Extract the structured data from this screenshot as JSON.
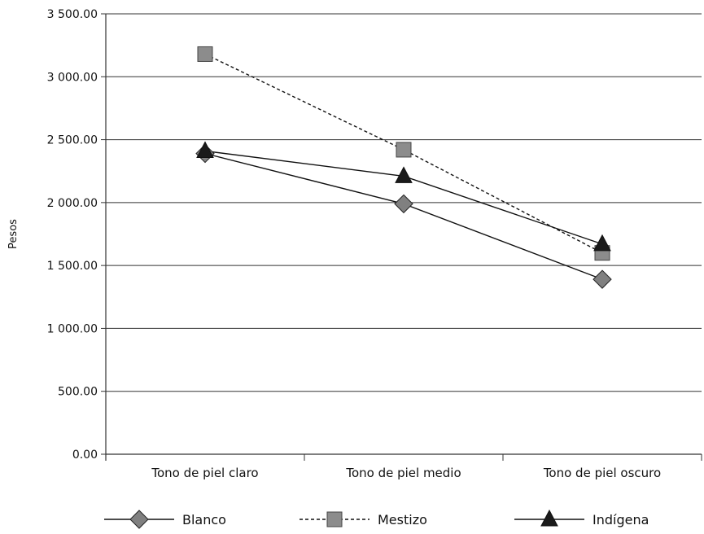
{
  "chart_data": {
    "type": "line",
    "title": "",
    "xlabel": "",
    "ylabel": "Pesos",
    "categories": [
      "Tono de piel claro",
      "Tono de piel medio",
      "Tono de piel oscuro"
    ],
    "ylim": [
      0,
      3500
    ],
    "yticks": [
      "0.00",
      "500.00",
      "1 000.00",
      "1 500.00",
      "2 000.00",
      "2 500.00",
      "3 000.00",
      "3 500.00"
    ],
    "grid": true,
    "legend_position": "bottom",
    "series": [
      {
        "name": "Blanco",
        "values": [
          2390,
          1990,
          1390
        ],
        "marker": "diamond",
        "line": "solid",
        "color": "#808080"
      },
      {
        "name": "Mestizo",
        "values": [
          3180,
          2420,
          1600
        ],
        "marker": "square",
        "line": "dashed",
        "color": "#8c8c8c"
      },
      {
        "name": "Indígena",
        "values": [
          2410,
          2210,
          1670
        ],
        "marker": "triangle",
        "line": "solid",
        "color": "#1a1a1a"
      }
    ]
  }
}
